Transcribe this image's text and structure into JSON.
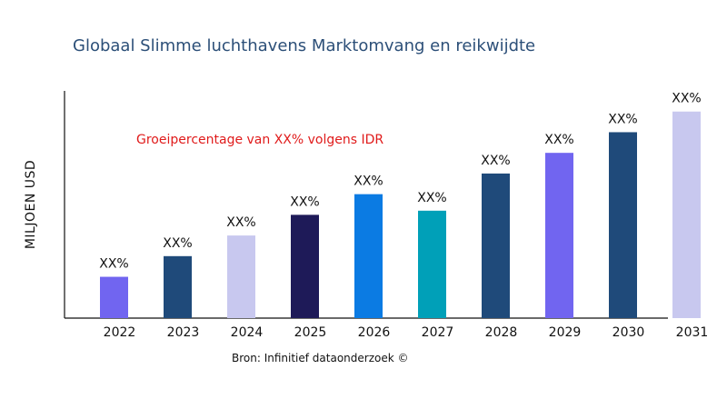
{
  "chart_data": {
    "type": "bar",
    "title": "Globaal Slimme luchthavens Marktomvang en reikwijdte",
    "ylabel": "MILJOEN USD",
    "xlabel": "",
    "annotation": "Groeipercentage van XX% volgens IDR",
    "source": "Bron: Infinitief dataonderzoek ©",
    "categories": [
      "2022",
      "2023",
      "2024",
      "2025",
      "2026",
      "2027",
      "2028",
      "2029",
      "2030",
      "2031"
    ],
    "values": [
      20,
      30,
      40,
      50,
      60,
      52,
      70,
      80,
      90,
      100
    ],
    "data_labels": [
      "XX%",
      "XX%",
      "XX%",
      "XX%",
      "XX%",
      "XX%",
      "XX%",
      "XX%",
      "XX%",
      "XX%"
    ],
    "colors": [
      "#7165f0",
      "#1f4a7a",
      "#c8c8ef",
      "#1e1a58",
      "#0b7be3",
      "#00a0b8",
      "#1f4a7a",
      "#7165f0",
      "#1f4a7a",
      "#c8c8ef"
    ],
    "ylim": [
      0,
      110
    ],
    "grid": false,
    "y_ticks_shown": false
  }
}
